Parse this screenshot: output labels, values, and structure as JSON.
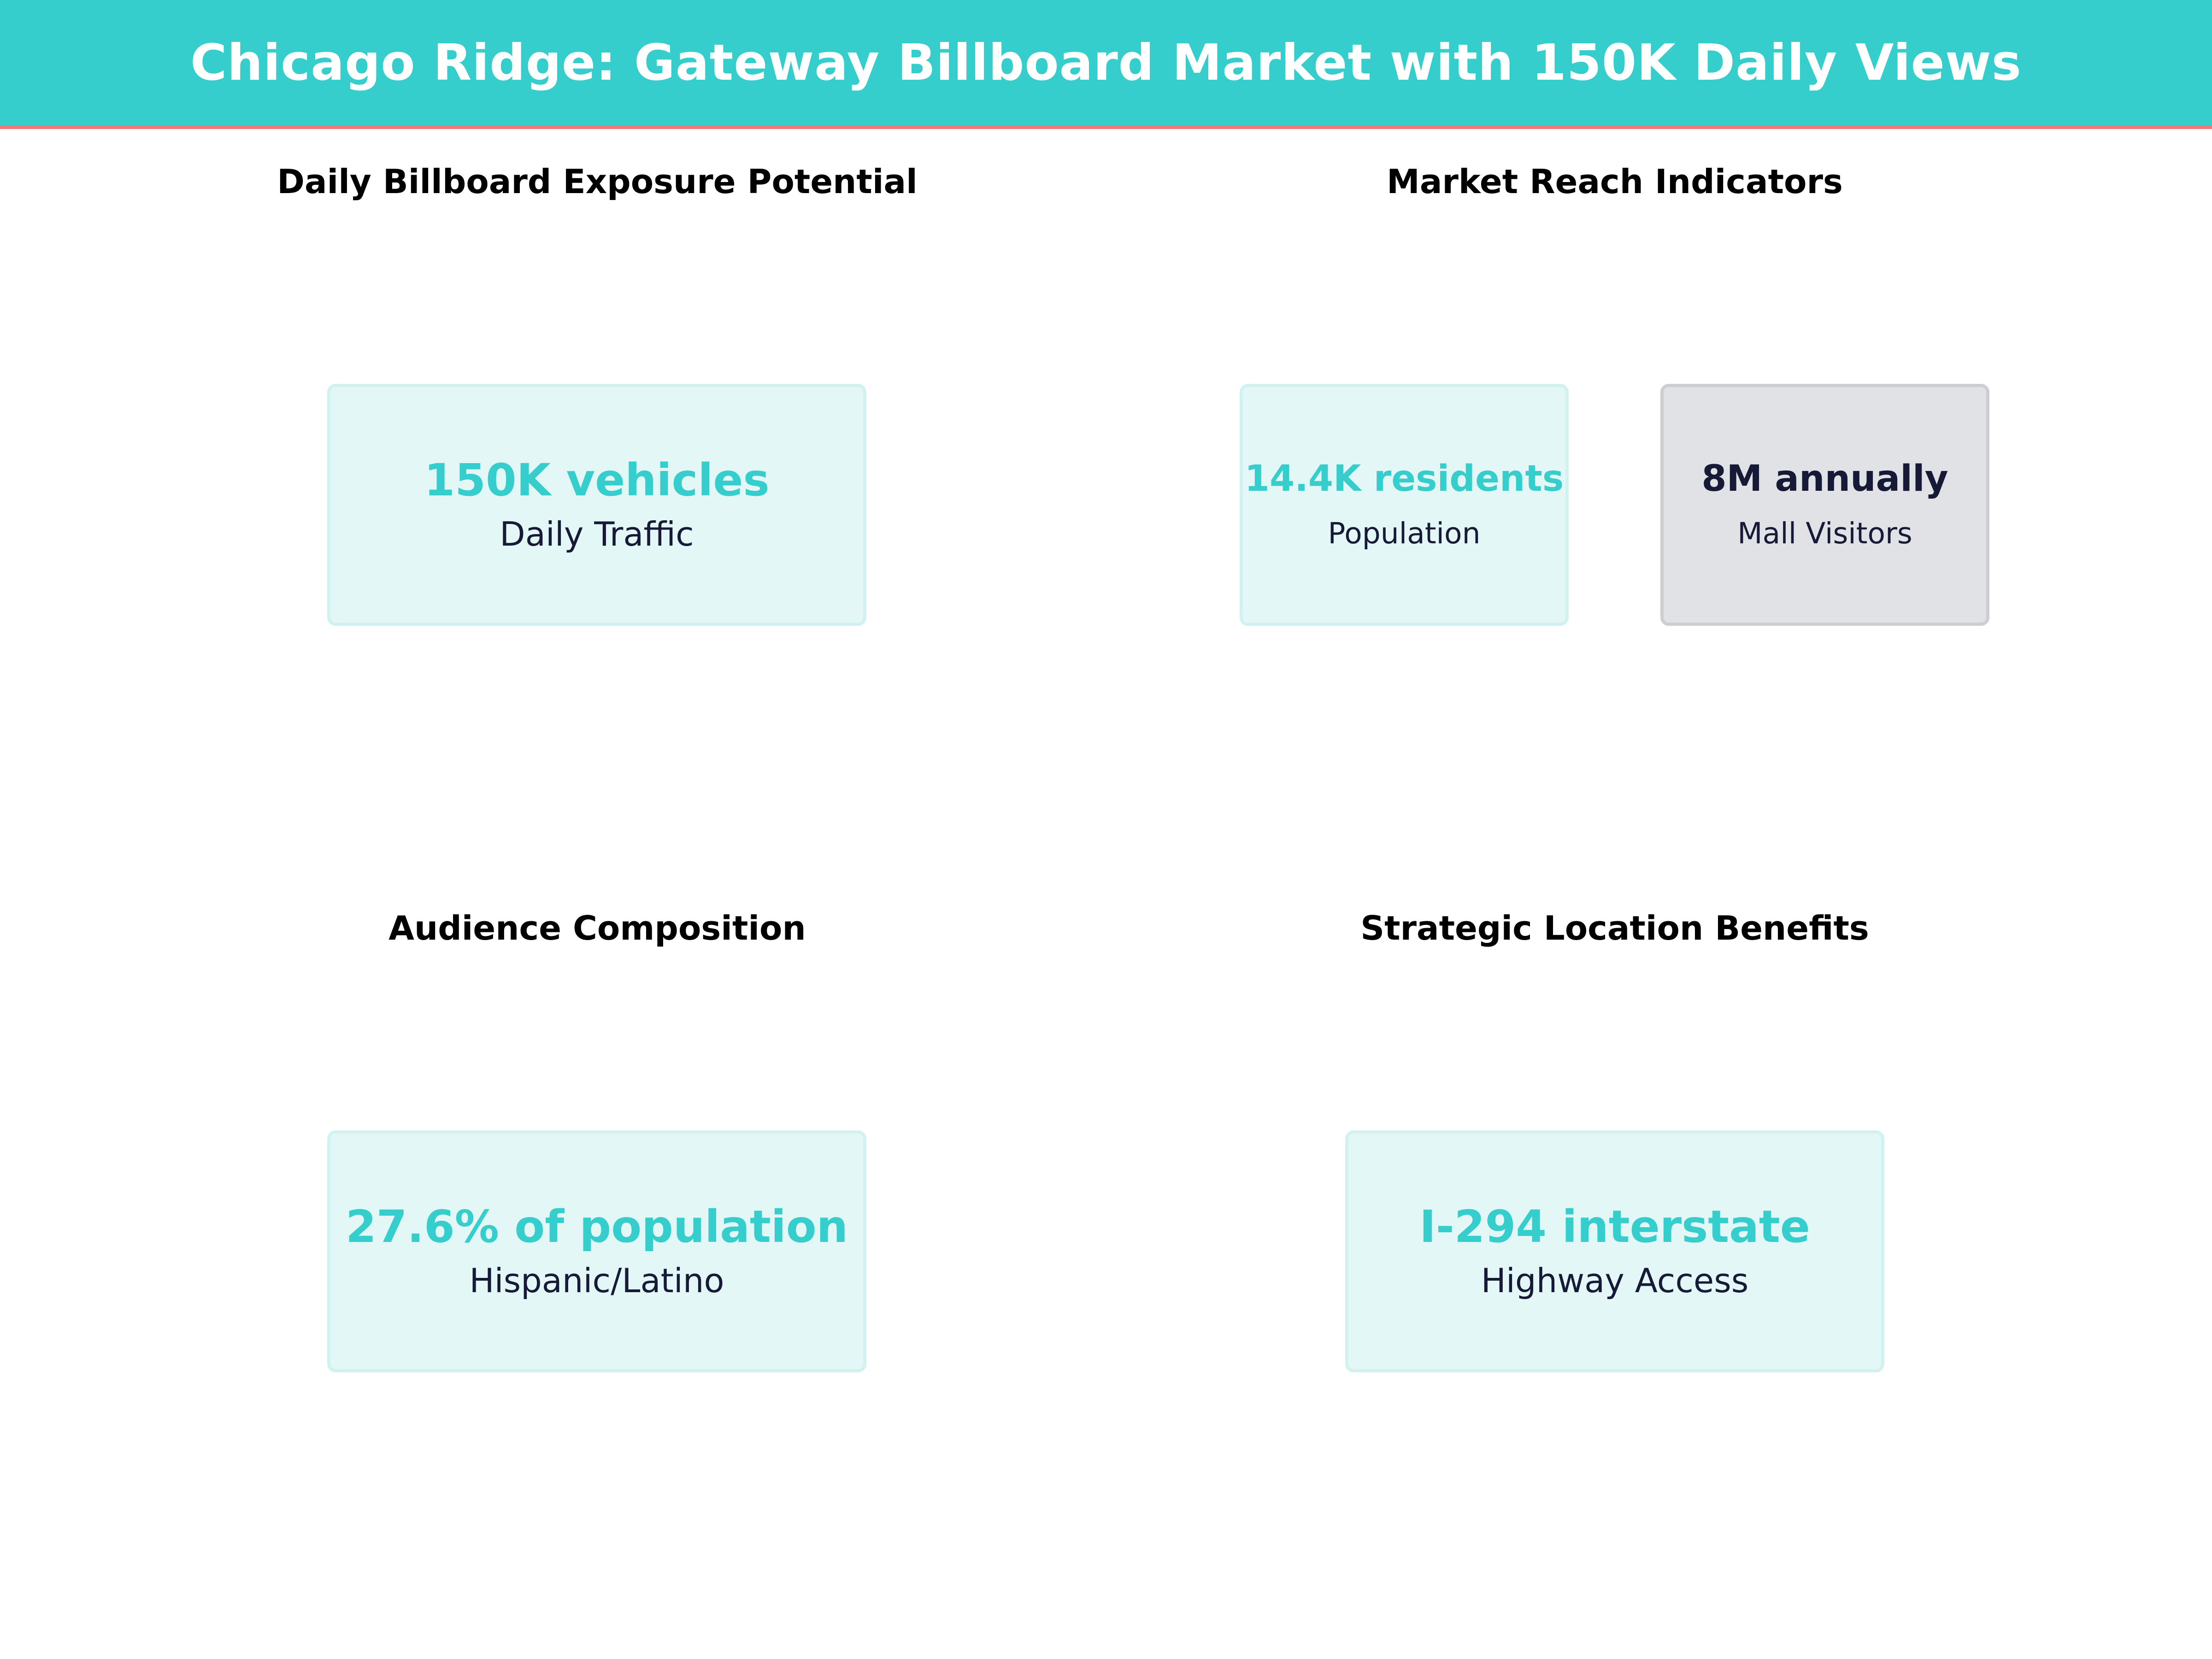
{
  "header": {
    "title": "Chicago Ridge: Gateway Billboard Market with 150K Daily Views"
  },
  "sections": {
    "exposure": {
      "title": "Daily Billboard Exposure Potential",
      "cards": [
        {
          "value": "150K vehicles",
          "label": "Daily Traffic"
        }
      ]
    },
    "reach": {
      "title": "Market Reach Indicators",
      "cards": [
        {
          "value": "14.4K residents",
          "label": "Population"
        },
        {
          "value": "8M annually",
          "label": "Mall Visitors"
        }
      ]
    },
    "audience": {
      "title": "Audience Composition",
      "cards": [
        {
          "value": "27.6% of population",
          "label": "Hispanic/Latino"
        }
      ]
    },
    "location": {
      "title": "Strategic Location Benefits",
      "cards": [
        {
          "value": "I-294 interstate",
          "label": "Highway Access"
        }
      ]
    }
  },
  "colors": {
    "header_bg": "#36cdcd",
    "header_border": "#f0787a",
    "accent": "#36cdcd",
    "dark_text": "#161a36",
    "card_bg": "#e4f7f7",
    "card_gray_bg": "#e1e2e6"
  }
}
